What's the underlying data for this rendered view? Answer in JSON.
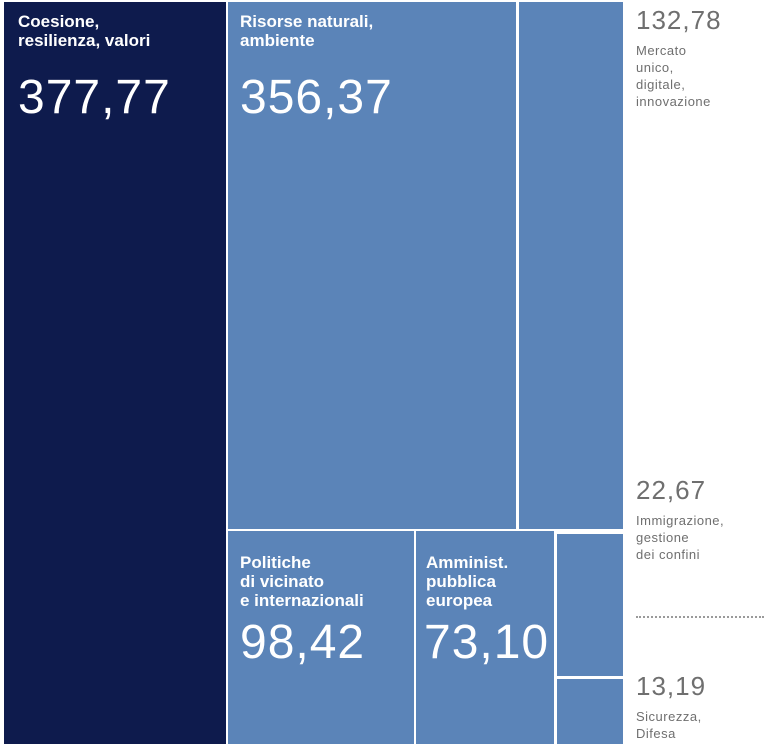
{
  "colors": {
    "dark_tile": "#0e1b4d",
    "light_tile": "#5b84b8",
    "side_text": "#6f6f6f",
    "tile_text": "#ffffff"
  },
  "chart_data": {
    "type": "treemap",
    "items": [
      {
        "label": "Coesione,\nresilienza, valori",
        "display_value": "377,77",
        "value": 377.77
      },
      {
        "label": "Risorse naturali,\nambiente",
        "display_value": "356,37",
        "value": 356.37
      },
      {
        "label": "Mercato\nunico,\ndigitale,\ninnovazione",
        "display_value": "132,78",
        "value": 132.78
      },
      {
        "label": "Politiche\ndi vicinato\ne internazionali",
        "display_value": "98,42",
        "value": 98.42
      },
      {
        "label": "Amminist.\npubblica\neuropea",
        "display_value": "73,10",
        "value": 73.1
      },
      {
        "label": "Immigrazione,\ngestione\ndei confini",
        "display_value": "22,67",
        "value": 22.67
      },
      {
        "label": "Sicurezza,\nDifesa",
        "display_value": "13,19",
        "value": 13.19
      }
    ]
  }
}
